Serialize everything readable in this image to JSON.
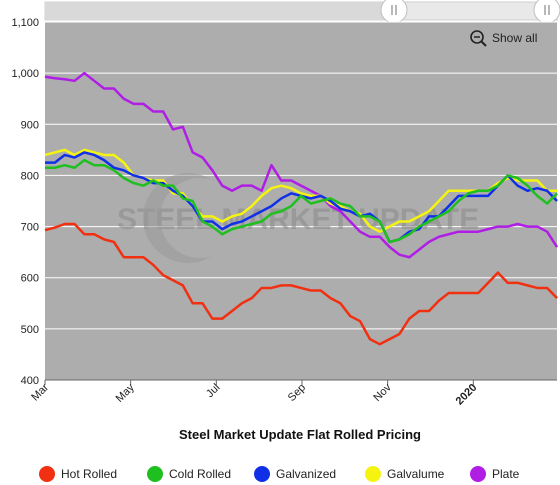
{
  "controls": {
    "show_all_label": "Show all",
    "zoom_icon": "zoom-out-icon",
    "scrollbar_handle_icon": "grip-icon"
  },
  "watermark": "STEEL MARKET UPDATE",
  "colors": {
    "plot_bg": "#adadad",
    "hot_rolled": "#f03010",
    "cold_rolled": "#1fbf1f",
    "galvanized": "#1030e8",
    "galvalume": "#f4f410",
    "plate": "#b01ee6"
  },
  "chart_data": {
    "type": "line",
    "title": "Steel Market Update Flat Rolled Pricing",
    "xlabel": "",
    "ylabel": "",
    "ylim": [
      400,
      1100
    ],
    "yticks": [
      400,
      500,
      600,
      700,
      800,
      900,
      1000,
      1100
    ],
    "ytick_labels": [
      "400",
      "500",
      "600",
      "700",
      "800",
      "900",
      "1,000",
      "1,100"
    ],
    "xticks": [
      {
        "label": "Mar",
        "week": 0,
        "bold": false
      },
      {
        "label": "May",
        "week": 8.7,
        "bold": false
      },
      {
        "label": "Jul",
        "week": 17.4,
        "bold": false
      },
      {
        "label": "Sep",
        "week": 26.1,
        "bold": false
      },
      {
        "label": "Nov",
        "week": 34.8,
        "bold": false
      },
      {
        "label": "2020",
        "week": 43.5,
        "bold": true
      }
    ],
    "x_range": [
      0,
      52
    ],
    "grid": true,
    "legend_position": "bottom",
    "series": [
      {
        "name": "Hot Rolled",
        "color": "#f03010",
        "values": [
          693,
          698,
          705,
          705,
          685,
          685,
          675,
          670,
          640,
          640,
          640,
          625,
          605,
          595,
          585,
          550,
          550,
          520,
          520,
          535,
          550,
          560,
          580,
          580,
          585,
          585,
          580,
          575,
          575,
          560,
          550,
          525,
          515,
          480,
          470,
          480,
          490,
          520,
          535,
          535,
          555,
          570,
          570,
          570,
          570,
          590,
          610,
          590,
          590,
          585,
          580,
          580,
          560
        ]
      },
      {
        "name": "Cold Rolled",
        "color": "#1fbf1f",
        "values": [
          815,
          815,
          820,
          815,
          830,
          820,
          820,
          810,
          795,
          785,
          780,
          790,
          780,
          780,
          755,
          750,
          710,
          700,
          685,
          695,
          700,
          705,
          710,
          725,
          730,
          740,
          760,
          745,
          750,
          755,
          745,
          740,
          720,
          720,
          710,
          670,
          675,
          685,
          700,
          710,
          720,
          730,
          750,
          765,
          770,
          770,
          780,
          800,
          795,
          780,
          760,
          745,
          765
        ]
      },
      {
        "name": "Galvanized",
        "color": "#1030e8",
        "values": [
          825,
          825,
          840,
          835,
          845,
          840,
          830,
          815,
          810,
          800,
          795,
          785,
          785,
          770,
          760,
          740,
          710,
          710,
          695,
          705,
          710,
          720,
          730,
          740,
          755,
          765,
          760,
          755,
          760,
          750,
          735,
          730,
          720,
          725,
          710,
          670,
          675,
          690,
          695,
          720,
          720,
          740,
          760,
          760,
          760,
          760,
          780,
          800,
          780,
          770,
          775,
          770,
          750
        ]
      },
      {
        "name": "Galvalume",
        "color": "#f4f410",
        "values": [
          840,
          845,
          850,
          840,
          850,
          845,
          840,
          840,
          825,
          800,
          795,
          790,
          790,
          765,
          765,
          740,
          720,
          720,
          710,
          720,
          725,
          740,
          760,
          775,
          780,
          775,
          765,
          760,
          760,
          745,
          740,
          730,
          725,
          700,
          690,
          700,
          710,
          710,
          720,
          730,
          750,
          770,
          770,
          770,
          770,
          770,
          785,
          795,
          790,
          790,
          790,
          770,
          770
        ]
      },
      {
        "name": "Plate",
        "color": "#b01ee6",
        "values": [
          993,
          990,
          988,
          985,
          1000,
          985,
          970,
          970,
          950,
          940,
          940,
          925,
          925,
          890,
          895,
          845,
          835,
          810,
          780,
          770,
          780,
          780,
          770,
          820,
          790,
          790,
          780,
          770,
          760,
          740,
          730,
          710,
          690,
          680,
          680,
          660,
          645,
          640,
          655,
          670,
          680,
          685,
          690,
          690,
          690,
          695,
          700,
          700,
          705,
          700,
          700,
          690,
          660
        ]
      }
    ]
  }
}
